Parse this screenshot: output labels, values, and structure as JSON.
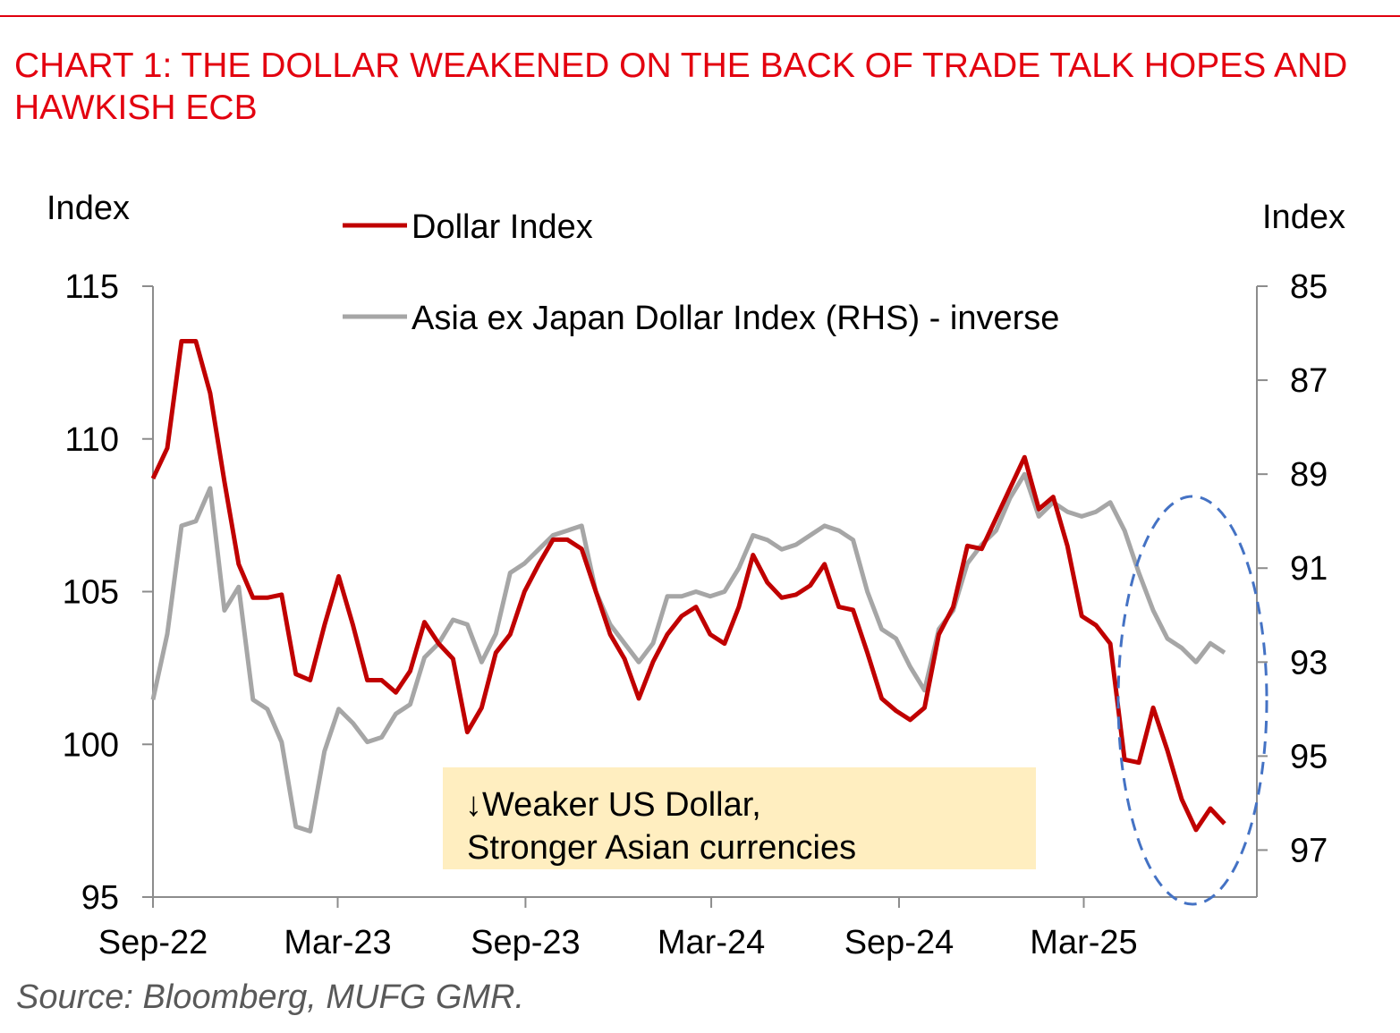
{
  "title": "CHART 1: THE DOLLAR WEAKENED ON THE BACK OF TRADE TALK HOPES AND HAWKISH ECB",
  "source": "Source: Bloomberg, MUFG GMR.",
  "colors": {
    "title": "#e3000f",
    "dollar_index": "#c00000",
    "asia_index": "#a6a6a6",
    "annotation_bg": "#ffeec0",
    "ellipse": "#4472c4"
  },
  "chart_data": {
    "type": "line",
    "title": "CHART 1: THE DOLLAR WEAKENED ON THE BACK OF TRADE TALK HOPES AND HAWKISH ECB",
    "ylabel_left": "Index",
    "ylabel_right": "Index",
    "ylim_left": [
      95,
      115
    ],
    "ylim_right": [
      85,
      98
    ],
    "right_axis_inverted": true,
    "yticks_left": [
      "115",
      "110",
      "105",
      "100",
      "95"
    ],
    "yticks_right": [
      "85",
      "87",
      "89",
      "91",
      "93",
      "95",
      "97"
    ],
    "xticks": [
      "Sep-22",
      "Mar-23",
      "Sep-23",
      "Mar-24",
      "Sep-24",
      "Mar-25"
    ],
    "xtick_dates": [
      "2022-09-01",
      "2023-03-01",
      "2023-09-01",
      "2024-03-01",
      "2024-09-01",
      "2025-03-01"
    ],
    "legend_placement": "top-center",
    "grid": false,
    "annotation": {
      "line1": "↓Weaker US Dollar,",
      "line2": "Stronger Asian currencies"
    },
    "highlight": "dashed ellipse around latest data",
    "x": [
      "2022-09-01",
      "2022-09-15",
      "2022-09-29",
      "2022-10-13",
      "2022-10-27",
      "2022-11-10",
      "2022-11-24",
      "2022-12-08",
      "2022-12-22",
      "2023-01-05",
      "2023-01-19",
      "2023-02-02",
      "2023-02-16",
      "2023-03-02",
      "2023-03-16",
      "2023-03-30",
      "2023-04-13",
      "2023-04-27",
      "2023-05-11",
      "2023-05-25",
      "2023-06-08",
      "2023-06-22",
      "2023-07-06",
      "2023-07-20",
      "2023-08-03",
      "2023-08-17",
      "2023-08-31",
      "2023-09-14",
      "2023-09-28",
      "2023-10-12",
      "2023-10-26",
      "2023-11-09",
      "2023-11-23",
      "2023-12-07",
      "2023-12-21",
      "2024-01-04",
      "2024-01-18",
      "2024-02-01",
      "2024-02-15",
      "2024-02-29",
      "2024-03-14",
      "2024-03-28",
      "2024-04-11",
      "2024-04-25",
      "2024-05-09",
      "2024-05-23",
      "2024-06-06",
      "2024-06-20",
      "2024-07-04",
      "2024-07-18",
      "2024-08-01",
      "2024-08-15",
      "2024-08-29",
      "2024-09-12",
      "2024-09-26",
      "2024-10-10",
      "2024-10-24",
      "2024-11-07",
      "2024-11-21",
      "2024-12-05",
      "2024-12-19",
      "2025-01-02",
      "2025-01-16",
      "2025-01-30",
      "2025-02-13",
      "2025-02-27",
      "2025-03-13",
      "2025-03-27",
      "2025-04-10",
      "2025-04-24",
      "2025-05-08",
      "2025-05-22",
      "2025-06-05",
      "2025-06-19",
      "2025-07-03",
      "2025-07-17"
    ],
    "series": [
      {
        "name": "Dollar Index",
        "axis": "left",
        "values": [
          108.7,
          109.7,
          113.2,
          113.2,
          111.5,
          108.6,
          105.9,
          104.8,
          104.8,
          104.9,
          102.3,
          102.1,
          103.9,
          105.5,
          103.9,
          102.1,
          102.1,
          101.7,
          102.4,
          104.0,
          103.3,
          102.8,
          100.4,
          101.2,
          103.0,
          103.6,
          105.0,
          105.9,
          106.7,
          106.7,
          106.4,
          105.0,
          103.6,
          102.8,
          101.5,
          102.7,
          103.6,
          104.2,
          104.5,
          103.6,
          103.3,
          104.5,
          106.2,
          105.3,
          104.8,
          104.9,
          105.2,
          105.9,
          104.5,
          104.4,
          103.0,
          101.5,
          101.1,
          100.8,
          101.2,
          103.6,
          104.5,
          106.5,
          106.4,
          107.4,
          108.4,
          109.4,
          107.7,
          108.1,
          106.5,
          104.2,
          103.9,
          103.3,
          99.5,
          99.4,
          101.2,
          99.8,
          98.2,
          97.2,
          97.9,
          97.4
        ]
      },
      {
        "name": "Asia ex Japan Dollar Index (RHS) - inverse",
        "axis": "right",
        "values": [
          93.8,
          92.4,
          90.1,
          90.0,
          89.3,
          91.9,
          91.4,
          93.8,
          94.0,
          94.7,
          96.5,
          96.6,
          94.9,
          94.0,
          94.3,
          94.7,
          94.6,
          94.1,
          93.9,
          92.9,
          92.6,
          92.1,
          92.2,
          93.0,
          92.4,
          91.1,
          90.9,
          90.6,
          90.3,
          90.2,
          90.1,
          91.5,
          92.2,
          92.6,
          93.0,
          92.6,
          91.6,
          91.6,
          91.5,
          91.6,
          91.5,
          91.0,
          90.3,
          90.4,
          90.6,
          90.5,
          90.3,
          90.1,
          90.2,
          90.4,
          91.5,
          92.3,
          92.5,
          93.1,
          93.6,
          92.3,
          91.9,
          90.9,
          90.5,
          90.2,
          89.5,
          89.0,
          89.9,
          89.6,
          89.8,
          89.9,
          89.8,
          89.6,
          90.2,
          91.1,
          91.9,
          92.5,
          92.7,
          93.0,
          92.6,
          92.8
        ]
      }
    ]
  }
}
